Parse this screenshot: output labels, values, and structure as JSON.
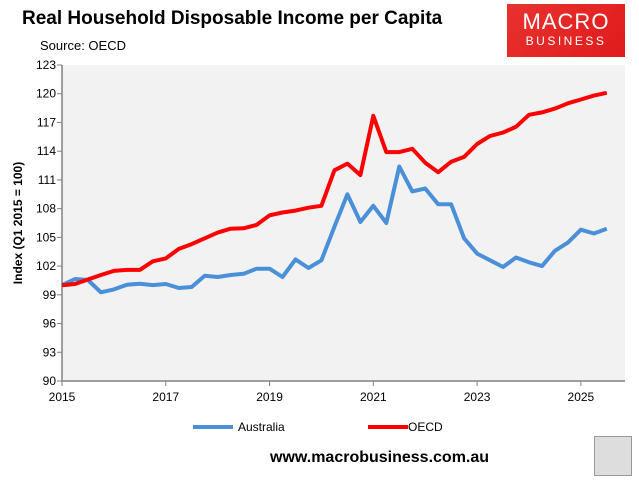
{
  "title": "Real Household Disposable Income per Capita",
  "source": "Source: OECD",
  "logo": {
    "line1": "MACRO",
    "line2": "BUSINESS"
  },
  "website": "www.macrobusiness.com.au",
  "chart_data": {
    "type": "line",
    "title": "Real Household Disposable Income per Capita",
    "ylabel": "Index (Q1 2015 = 100)",
    "xlabel": "",
    "x_start": "2015 Q1",
    "x_frequency": "quarterly",
    "xlim": [
      2015,
      2025.85
    ],
    "xticks": [
      "2015",
      "2017",
      "2019",
      "2021",
      "2023",
      "2025"
    ],
    "ylim": [
      90,
      123
    ],
    "yticks": [
      90,
      93,
      96,
      99,
      102,
      105,
      108,
      111,
      114,
      117,
      120,
      123
    ],
    "grid": false,
    "legend": "bottom",
    "series": [
      {
        "name": "Australia",
        "color": "#4a90d9",
        "values": [
          100.0,
          100.65,
          100.55,
          99.26,
          99.57,
          100.06,
          100.16,
          100.02,
          100.13,
          99.71,
          99.82,
          101.0,
          100.86,
          101.07,
          101.2,
          101.73,
          101.73,
          100.86,
          102.7,
          101.8,
          102.6,
          106.1,
          109.5,
          106.6,
          108.3,
          106.5,
          112.4,
          109.8,
          110.1,
          108.45,
          108.45,
          104.9,
          103.3,
          102.6,
          101.9,
          102.9,
          102.4,
          102.0,
          103.6,
          104.45,
          105.8,
          105.4,
          105.9
        ]
      },
      {
        "name": "OECD",
        "color": "#ff0000",
        "values": [
          100.0,
          100.13,
          100.6,
          101.07,
          101.5,
          101.6,
          101.6,
          102.5,
          102.8,
          103.8,
          104.3,
          104.9,
          105.5,
          105.9,
          105.95,
          106.3,
          107.3,
          107.6,
          107.8,
          108.1,
          108.3,
          112.0,
          112.7,
          111.5,
          117.7,
          113.9,
          113.9,
          114.25,
          112.8,
          111.8,
          112.9,
          113.4,
          114.75,
          115.6,
          115.95,
          116.55,
          117.8,
          118.05,
          118.45,
          119.0,
          119.4,
          119.8,
          120.1
        ]
      }
    ]
  }
}
